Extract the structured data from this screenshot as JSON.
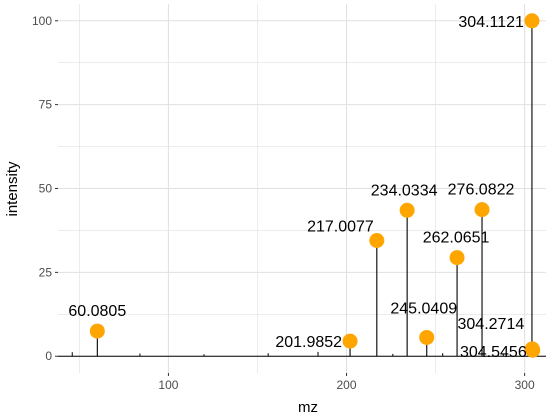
{
  "chart_data": {
    "type": "scatter",
    "title": "",
    "xlabel": "mz",
    "ylabel": "intensity",
    "xlim": [
      38,
      312
    ],
    "ylim": [
      -5,
      105
    ],
    "x_ticks": [
      100,
      200,
      300
    ],
    "y_ticks": [
      0,
      25,
      50,
      75,
      100
    ],
    "grid": true,
    "legend": "none",
    "series": [
      {
        "points": [
          {
            "x": 60.0805,
            "y": 7.5,
            "label": "60.0805"
          },
          {
            "x": 201.9852,
            "y": 4.5,
            "label": "201.9852"
          },
          {
            "x": 217.0077,
            "y": 34.5,
            "label": "217.0077"
          },
          {
            "x": 234.0334,
            "y": 43.5,
            "label": "234.0334"
          },
          {
            "x": 245.0409,
            "y": 5.6,
            "label": "245.0409"
          },
          {
            "x": 262.0651,
            "y": 29.4,
            "label": "262.0651"
          },
          {
            "x": 276.0822,
            "y": 43.7,
            "label": "276.0822"
          },
          {
            "x": 304.1121,
            "y": 100,
            "label": "304.1121"
          },
          {
            "x": 304.2714,
            "y": 2.2,
            "label": "304.2714"
          },
          {
            "x": 304.5456,
            "y": 1.8,
            "label": "304.5456"
          }
        ],
        "stems_from_zero": true
      }
    ],
    "minor_peaks": [
      {
        "x": 46,
        "y": 1.2
      },
      {
        "x": 84,
        "y": 0.8
      },
      {
        "x": 120,
        "y": 0.6
      },
      {
        "x": 156,
        "y": 0.9
      },
      {
        "x": 184,
        "y": 1.3
      },
      {
        "x": 226,
        "y": 0.7
      },
      {
        "x": 254,
        "y": 0.9
      },
      {
        "x": 288,
        "y": 0.8
      }
    ]
  },
  "colors": {
    "point": "#FFA500",
    "stem": "#000000",
    "grid": "#e0e0e0",
    "axis_text": "#4d4d4d",
    "background": "#ffffff"
  }
}
